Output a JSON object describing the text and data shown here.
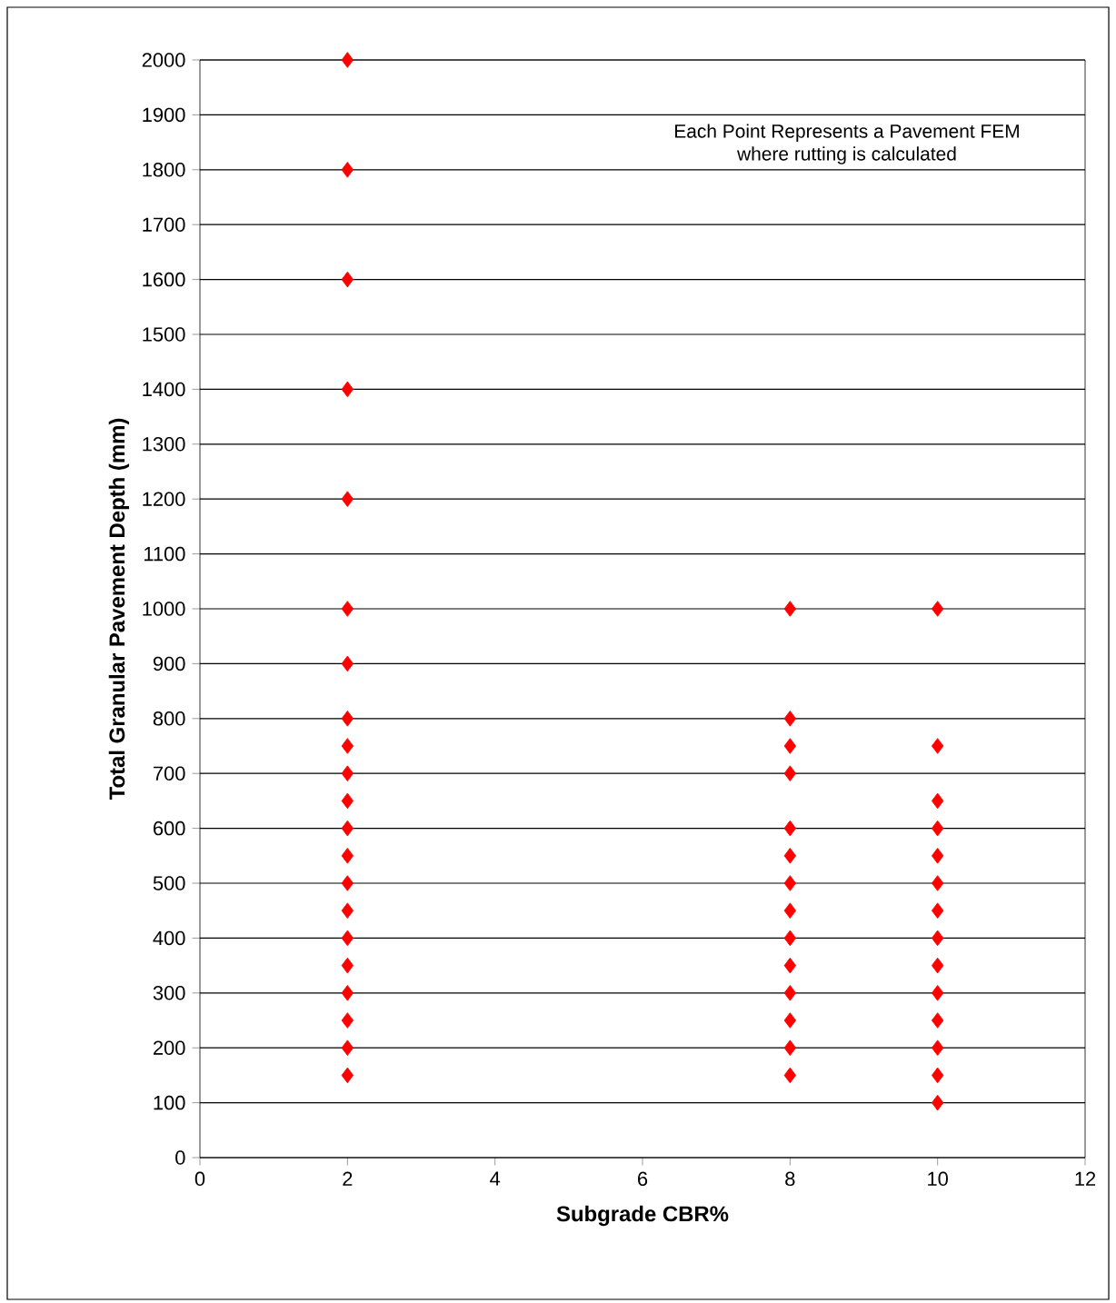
{
  "chart_data": {
    "type": "scatter",
    "xlabel": "Subgrade CBR%",
    "ylabel": "Total Granular Pavement Depth (mm)",
    "annotations": [
      "Each Point Represents a Pavement FEM\nwhere rutting is calculated"
    ],
    "series": [
      {
        "color": "#ff0000",
        "x": [
          2,
          2,
          2,
          2,
          2,
          2,
          2,
          2,
          2,
          2,
          2,
          2,
          2,
          2,
          2,
          2,
          2,
          2,
          2,
          2,
          2,
          8,
          8,
          8,
          8,
          8,
          8,
          8,
          8,
          8,
          8,
          8,
          8,
          8,
          8,
          10,
          10,
          10,
          10,
          10,
          10,
          10,
          10,
          10,
          10,
          10,
          10,
          10,
          10
        ],
        "values": [
          150,
          200,
          250,
          300,
          350,
          400,
          450,
          500,
          550,
          600,
          650,
          700,
          750,
          800,
          900,
          1000,
          1200,
          1400,
          1600,
          1800,
          2000,
          150,
          200,
          250,
          300,
          350,
          400,
          450,
          500,
          550,
          600,
          700,
          750,
          800,
          1000,
          100,
          150,
          200,
          250,
          300,
          350,
          400,
          450,
          500,
          550,
          600,
          650,
          750,
          1000
        ]
      }
    ],
    "xlim": [
      0,
      12
    ],
    "xticks": [
      0,
      2,
      4,
      6,
      8,
      10,
      12
    ],
    "ylim": [
      0,
      2000
    ],
    "yticks": [
      0,
      100,
      200,
      300,
      400,
      500,
      600,
      700,
      800,
      900,
      1000,
      1100,
      1200,
      1300,
      1400,
      1500,
      1600,
      1700,
      1800,
      1900,
      2000
    ],
    "grid": "y",
    "marker": "diamond"
  }
}
